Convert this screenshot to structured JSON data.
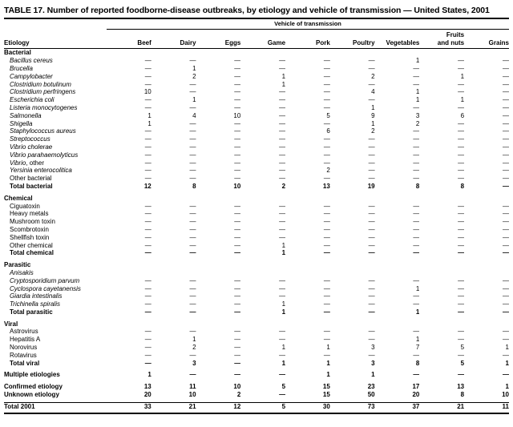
{
  "title": "TABLE 17. Number of reported foodborne-disease outbreaks, by etiology and vehicle of transmission — United States, 2001",
  "table": {
    "spanner": "Vehicle of transmission",
    "row_header": "Etiology",
    "columns": [
      {
        "lines": [
          "Beef"
        ]
      },
      {
        "lines": [
          "Dairy"
        ]
      },
      {
        "lines": [
          "Eggs"
        ]
      },
      {
        "lines": [
          "Game"
        ]
      },
      {
        "lines": [
          "Pork"
        ]
      },
      {
        "lines": [
          "Poultry"
        ]
      },
      {
        "lines": [
          "Vegetables"
        ]
      },
      {
        "lines": [
          "Fruits",
          "and nuts"
        ]
      },
      {
        "lines": [
          "Grains"
        ]
      }
    ],
    "empty_value": "—",
    "sections": [
      {
        "header": "Bacterial",
        "rows": [
          {
            "label": "Bacillus cereus",
            "italic": true,
            "indent": true,
            "values": [
              "—",
              "—",
              "—",
              "—",
              "—",
              "—",
              "1",
              "—",
              "—"
            ]
          },
          {
            "label": "Brucella",
            "italic": true,
            "indent": true,
            "values": [
              "—",
              "1",
              "—",
              "—",
              "—",
              "—",
              "—",
              "—",
              "—"
            ]
          },
          {
            "label": "Campylobacter",
            "italic": true,
            "indent": true,
            "values": [
              "—",
              "2",
              "—",
              "1",
              "—",
              "2",
              "—",
              "1",
              "—"
            ]
          },
          {
            "label": "Clostridium botulinum",
            "italic": true,
            "indent": true,
            "values": [
              "—",
              "—",
              "—",
              "1",
              "—",
              "—",
              "—",
              "—",
              "—"
            ]
          },
          {
            "label": "Clostridium perfringens",
            "italic": true,
            "indent": true,
            "values": [
              "10",
              "—",
              "—",
              "—",
              "—",
              "4",
              "1",
              "—",
              "—"
            ]
          },
          {
            "label": "Escherichia coli",
            "italic": true,
            "indent": true,
            "values": [
              "—",
              "1",
              "—",
              "—",
              "—",
              "—",
              "1",
              "1",
              "—"
            ]
          },
          {
            "label": "Listeria monocytogenes",
            "italic": true,
            "indent": true,
            "values": [
              "—",
              "—",
              "—",
              "—",
              "—",
              "1",
              "—",
              "—",
              "—"
            ]
          },
          {
            "label": "Salmonella",
            "italic": true,
            "indent": true,
            "values": [
              "1",
              "4",
              "10",
              "—",
              "5",
              "9",
              "3",
              "6",
              "—"
            ]
          },
          {
            "label": "Shigella",
            "italic": true,
            "indent": true,
            "values": [
              "1",
              "—",
              "—",
              "—",
              "—",
              "1",
              "2",
              "—",
              "—"
            ]
          },
          {
            "label": "Staphylococcus aureus",
            "italic": true,
            "indent": true,
            "values": [
              "—",
              "—",
              "—",
              "—",
              "6",
              "2",
              "—",
              "—",
              "—"
            ]
          },
          {
            "label": "Streptococcus",
            "italic": true,
            "indent": true,
            "values": [
              "—",
              "—",
              "—",
              "—",
              "—",
              "—",
              "—",
              "—",
              "—"
            ]
          },
          {
            "label": "Vibrio cholerae",
            "italic": true,
            "indent": true,
            "values": [
              "—",
              "—",
              "—",
              "—",
              "—",
              "—",
              "—",
              "—",
              "—"
            ]
          },
          {
            "label": "Vibrio parahaemolyticus",
            "italic": true,
            "indent": true,
            "values": [
              "—",
              "—",
              "—",
              "—",
              "—",
              "—",
              "—",
              "—",
              "—"
            ]
          },
          {
            "label": "Vibrio",
            "suffix": ", other",
            "italic": true,
            "indent": true,
            "values": [
              "—",
              "—",
              "—",
              "—",
              "—",
              "—",
              "—",
              "—",
              "—"
            ]
          },
          {
            "label": "Yersinia enterocolitica",
            "italic": true,
            "indent": true,
            "values": [
              "—",
              "—",
              "—",
              "—",
              "2",
              "—",
              "—",
              "—",
              "—"
            ]
          },
          {
            "label": "Other bacterial",
            "indent": true,
            "values": [
              "—",
              "—",
              "—",
              "—",
              "—",
              "—",
              "—",
              "—",
              "—"
            ]
          },
          {
            "label": "Total bacterial",
            "bold": true,
            "indent": true,
            "values": [
              "12",
              "8",
              "10",
              "2",
              "13",
              "19",
              "8",
              "8",
              "—"
            ]
          }
        ]
      },
      {
        "header": "Chemical",
        "rows": [
          {
            "label": "Ciguatoxin",
            "indent": true,
            "values": [
              "—",
              "—",
              "—",
              "—",
              "—",
              "—",
              "—",
              "—",
              "—"
            ]
          },
          {
            "label": "Heavy metals",
            "indent": true,
            "values": [
              "—",
              "—",
              "—",
              "—",
              "—",
              "—",
              "—",
              "—",
              "—"
            ]
          },
          {
            "label": "Mushroom toxin",
            "indent": true,
            "values": [
              "—",
              "—",
              "—",
              "—",
              "—",
              "—",
              "—",
              "—",
              "—"
            ]
          },
          {
            "label": "Scombrotoxin",
            "indent": true,
            "values": [
              "—",
              "—",
              "—",
              "—",
              "—",
              "—",
              "—",
              "—",
              "—"
            ]
          },
          {
            "label": "Shellfish toxin",
            "indent": true,
            "values": [
              "—",
              "—",
              "—",
              "—",
              "—",
              "—",
              "—",
              "—",
              "—"
            ]
          },
          {
            "label": "Other chemical",
            "indent": true,
            "values": [
              "—",
              "—",
              "—",
              "1",
              "—",
              "—",
              "—",
              "—",
              "—"
            ]
          },
          {
            "label": "Total chemical",
            "bold": true,
            "indent": true,
            "values": [
              "—",
              "—",
              "—",
              "1",
              "—",
              "—",
              "—",
              "—",
              "—"
            ]
          }
        ]
      },
      {
        "header": "Parasitic",
        "rows": [
          {
            "label": "Anisakis",
            "italic": true,
            "indent": true,
            "values": [
              "",
              "",
              "",
              "",
              "",
              "",
              "",
              "",
              ""
            ]
          },
          {
            "label": "Cryptosporidium parvum",
            "italic": true,
            "indent": true,
            "values": [
              "—",
              "—",
              "—",
              "—",
              "—",
              "—",
              "—",
              "—",
              "—"
            ]
          },
          {
            "label": "Cyclospora cayetanensis",
            "italic": true,
            "indent": true,
            "values": [
              "—",
              "—",
              "—",
              "—",
              "—",
              "—",
              "1",
              "—",
              "—"
            ]
          },
          {
            "label": "Giardia intestinalis",
            "italic": true,
            "indent": true,
            "values": [
              "—",
              "—",
              "—",
              "—",
              "—",
              "—",
              "—",
              "—",
              "—"
            ]
          },
          {
            "label": "Trichinella spiralis",
            "italic": true,
            "indent": true,
            "values": [
              "—",
              "—",
              "—",
              "1",
              "—",
              "—",
              "—",
              "—",
              "—"
            ]
          },
          {
            "label": "Total parasitic",
            "bold": true,
            "indent": true,
            "values": [
              "—",
              "—",
              "—",
              "1",
              "—",
              "—",
              "1",
              "—",
              "—"
            ]
          }
        ]
      },
      {
        "header": "Viral",
        "rows": [
          {
            "label": "Astrovirus",
            "indent": true,
            "values": [
              "—",
              "—",
              "—",
              "—",
              "—",
              "—",
              "—",
              "—",
              "—"
            ]
          },
          {
            "label": "Hepatitis A",
            "indent": true,
            "values": [
              "—",
              "1",
              "—",
              "—",
              "—",
              "—",
              "1",
              "—",
              "—"
            ]
          },
          {
            "label": "Norovirus",
            "indent": true,
            "values": [
              "—",
              "2",
              "—",
              "1",
              "1",
              "3",
              "7",
              "5",
              "1"
            ]
          },
          {
            "label": "Rotavirus",
            "indent": true,
            "values": [
              "—",
              "—",
              "—",
              "—",
              "—",
              "—",
              "—",
              "—",
              "—"
            ]
          },
          {
            "label": "Total viral",
            "bold": true,
            "indent": true,
            "values": [
              "—",
              "3",
              "—",
              "1",
              "1",
              "3",
              "8",
              "5",
              "1"
            ]
          }
        ]
      },
      {
        "header": null,
        "rows": [
          {
            "label": "Multiple etiologies",
            "bold": true,
            "values": [
              "1",
              "—",
              "—",
              "—",
              "1",
              "1",
              "—",
              "—",
              "—"
            ]
          }
        ]
      },
      {
        "header": null,
        "rows": [
          {
            "label": "Confirmed etiology",
            "bold": true,
            "values": [
              "13",
              "11",
              "10",
              "5",
              "15",
              "23",
              "17",
              "13",
              "1"
            ]
          },
          {
            "label": "Unknown etiology",
            "bold": true,
            "values": [
              "20",
              "10",
              "2",
              "—",
              "15",
              "50",
              "20",
              "8",
              "10"
            ]
          }
        ]
      },
      {
        "header": null,
        "rows": [
          {
            "label": "Total 2001",
            "bold": true,
            "grand_total": true,
            "values": [
              "33",
              "21",
              "12",
              "5",
              "30",
              "73",
              "37",
              "21",
              "11"
            ]
          }
        ]
      }
    ]
  }
}
